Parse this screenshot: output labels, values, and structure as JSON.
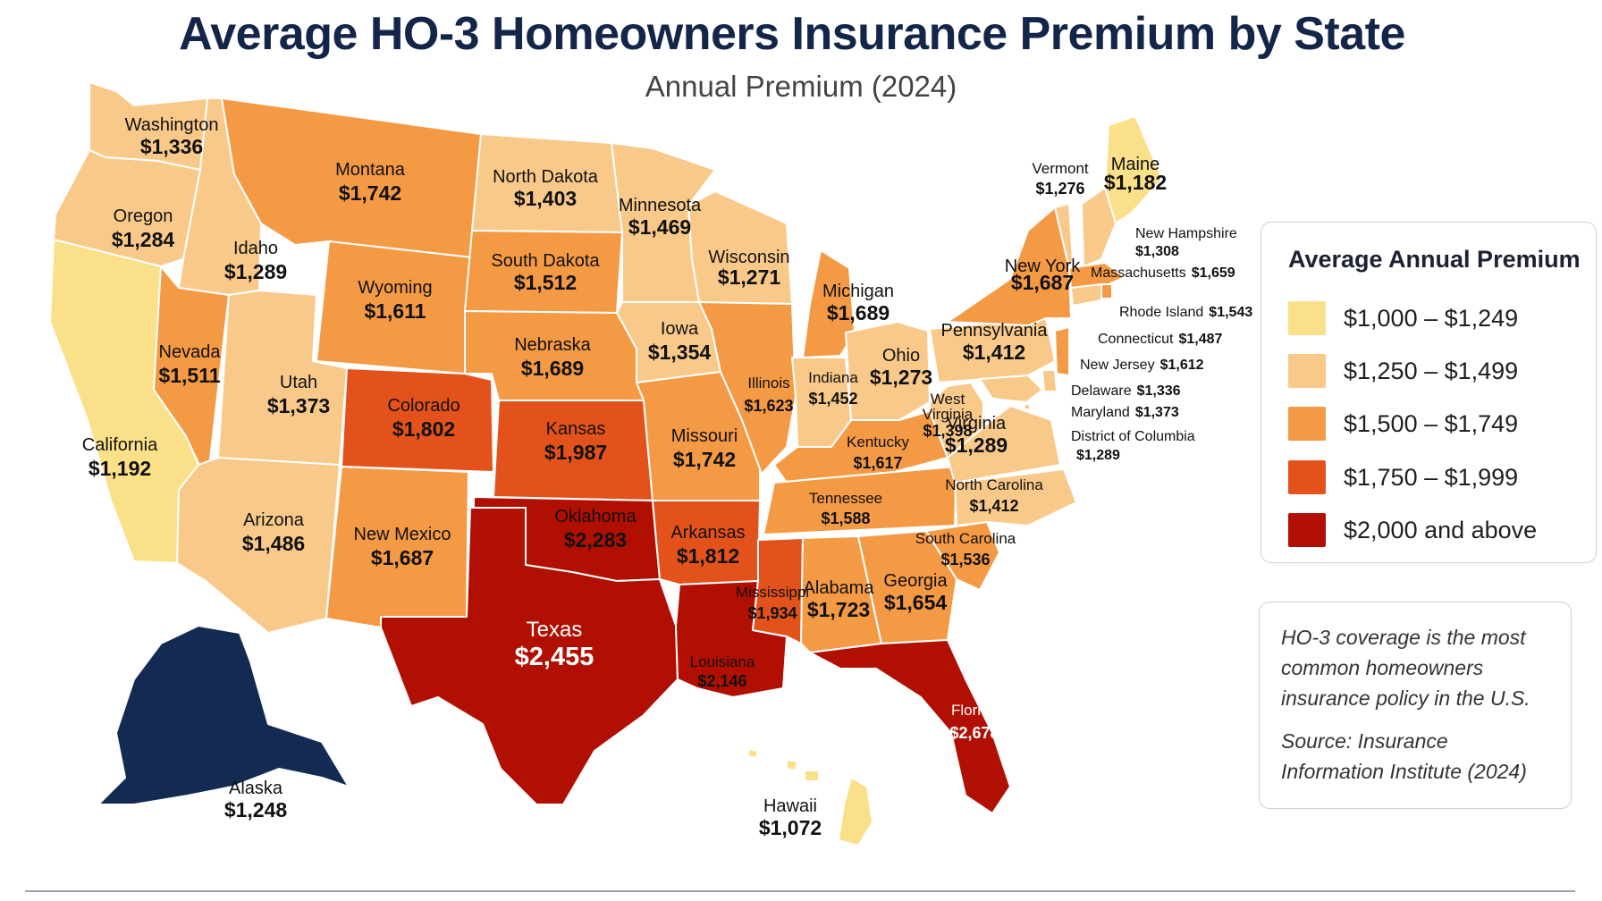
{
  "title": "Average HO-3 Homeowners Insurance Premium by State",
  "subtitle": "Annual Premium (2024)",
  "legend": {
    "title": "Average Annual Premium",
    "bins": [
      {
        "label": "$1,000 – $1,249",
        "color": "#fbe08a"
      },
      {
        "label": "$1,250 – $1,499",
        "color": "#f9c98a"
      },
      {
        "label": "$1,500 – $1,749",
        "color": "#f59a44"
      },
      {
        "label": "$1,750 – $1,999",
        "color": "#e4521b"
      },
      {
        "label": "$2,000 and above",
        "color": "#b20f03"
      }
    ]
  },
  "note": {
    "text": "HO-3 coverage is the most common homeowners insurance policy in the U.S.",
    "source": "Source: Insurance Information Institute (2024)"
  },
  "states": [
    {
      "id": "washington",
      "name": "Washington",
      "value": "$1,336"
    },
    {
      "id": "oregon",
      "name": "Oregon",
      "value": "$1,284"
    },
    {
      "id": "california",
      "name": "California",
      "value": "$1,192"
    },
    {
      "id": "idaho",
      "name": "Idaho",
      "value": "$1,289"
    },
    {
      "id": "nevada",
      "name": "Nevada",
      "value": "$1,511"
    },
    {
      "id": "montana",
      "name": "Montana",
      "value": "$1,742"
    },
    {
      "id": "wyoming",
      "name": "Wyoming",
      "value": "$1,611"
    },
    {
      "id": "utah",
      "name": "Utah",
      "value": "$1,373"
    },
    {
      "id": "arizona",
      "name": "Arizona",
      "value": "$1,486"
    },
    {
      "id": "colorado",
      "name": "Colorado",
      "value": "$1,802"
    },
    {
      "id": "new-mexico",
      "name": "New Mexico",
      "value": "$1,687"
    },
    {
      "id": "north-dakota",
      "name": "North Dakota",
      "value": "$1,403"
    },
    {
      "id": "south-dakota",
      "name": "South Dakota",
      "value": "$1,512"
    },
    {
      "id": "nebraska",
      "name": "Nebraska",
      "value": "$1,689"
    },
    {
      "id": "kansas",
      "name": "Kansas",
      "value": "$1,987"
    },
    {
      "id": "oklahoma",
      "name": "Oklahoma",
      "value": "$2,283"
    },
    {
      "id": "texas",
      "name": "Texas",
      "value": "$2,455"
    },
    {
      "id": "minnesota",
      "name": "Minnesota",
      "value": "$1,469"
    },
    {
      "id": "iowa",
      "name": "Iowa",
      "value": "$1,354"
    },
    {
      "id": "missouri",
      "name": "Missouri",
      "value": "$1,742"
    },
    {
      "id": "arkansas",
      "name": "Arkansas",
      "value": "$1,812"
    },
    {
      "id": "louisiana",
      "name": "Louisiana",
      "value": "$2,146"
    },
    {
      "id": "wisconsin",
      "name": "Wisconsin",
      "value": "$1,271"
    },
    {
      "id": "illinois",
      "name": "Illinois",
      "value": "$1,623"
    },
    {
      "id": "michigan",
      "name": "Michigan",
      "value": "$1,689"
    },
    {
      "id": "indiana",
      "name": "Indiana",
      "value": "$1,452"
    },
    {
      "id": "ohio",
      "name": "Ohio",
      "value": "$1,273"
    },
    {
      "id": "kentucky",
      "name": "Kentucky",
      "value": "$1,617"
    },
    {
      "id": "tennessee",
      "name": "Tennessee",
      "value": "$1,588"
    },
    {
      "id": "mississippi",
      "name": "Mississippi",
      "value": "$1,934"
    },
    {
      "id": "alabama",
      "name": "Alabama",
      "value": "$1,723"
    },
    {
      "id": "georgia",
      "name": "Georgia",
      "value": "$1,654"
    },
    {
      "id": "florida",
      "name": "Florida",
      "value": "$2,678"
    },
    {
      "id": "south-carolina",
      "name": "South Carolina",
      "value": "$1,536"
    },
    {
      "id": "north-carolina",
      "name": "North Carolina",
      "value": "$1,412"
    },
    {
      "id": "virginia",
      "name": "Virginia",
      "value": "$1,289"
    },
    {
      "id": "west-virginia",
      "name": "West Virginia",
      "value": "$1,398"
    },
    {
      "id": "pennsylvania",
      "name": "Pennsylvania",
      "value": "$1,412"
    },
    {
      "id": "new-york",
      "name": "New York",
      "value": "$1,687"
    },
    {
      "id": "vermont",
      "name": "Vermont",
      "value": "$1,276"
    },
    {
      "id": "maine",
      "name": "Maine",
      "value": "$1,182"
    },
    {
      "id": "new-hampshire",
      "name": "New Hampshire",
      "value": "$1,308"
    },
    {
      "id": "massachusetts",
      "name": "Massachusetts",
      "value": "$1,659"
    },
    {
      "id": "rhode-island",
      "name": "Rhode Island",
      "value": "$1,543"
    },
    {
      "id": "connecticut",
      "name": "Connecticut",
      "value": "$1,487"
    },
    {
      "id": "new-jersey",
      "name": "New Jersey",
      "value": "$1,612"
    },
    {
      "id": "delaware",
      "name": "Delaware",
      "value": "$1,336"
    },
    {
      "id": "maryland",
      "name": "Maryland",
      "value": "$1,373"
    },
    {
      "id": "district-of-columbia",
      "name": "District of Columbia",
      "value": "$1,289"
    },
    {
      "id": "alaska",
      "name": "Alaska",
      "value": "$1,248"
    },
    {
      "id": "hawaii",
      "name": "Hawaii",
      "value": "$1,072"
    }
  ],
  "colors": {
    "alaska_fill": "#132b52",
    "title_color": "#14254a"
  }
}
